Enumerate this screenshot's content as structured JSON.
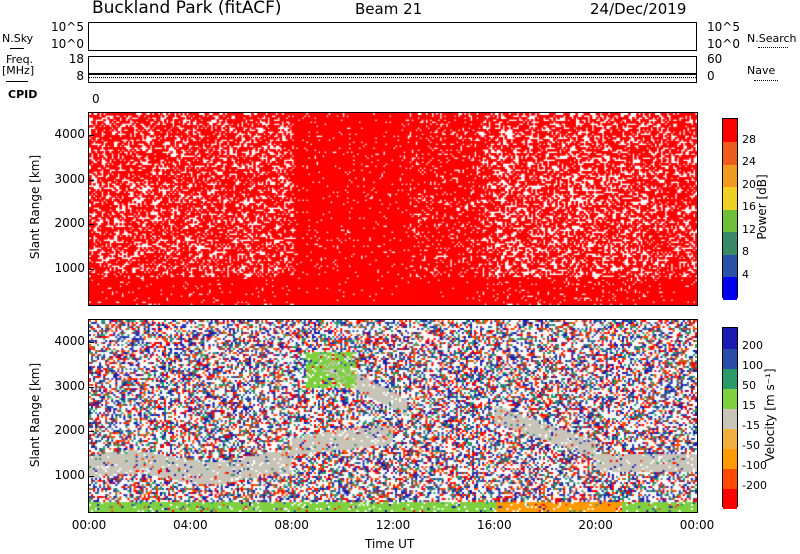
{
  "header": {
    "station": "Buckland Park (fitACF)",
    "beam": "Beam 21",
    "date": "24/Dec/2019"
  },
  "nsky_panel": {
    "left_label": "N.Sky",
    "right_label": "N.Search",
    "left_ticks": [
      "10^5",
      "10^0"
    ],
    "right_ticks": [
      "10^5",
      "10^0"
    ]
  },
  "freq_panel": {
    "left_label_line1": "Freq.",
    "left_label_line2": "[MHz]",
    "right_label": "Nave",
    "left_ticks": [
      "18",
      "8"
    ],
    "right_ticks": [
      "60",
      "0"
    ],
    "freq_level": 10,
    "nave_level": 3
  },
  "cpid": {
    "label": "CPID",
    "value": "0"
  },
  "chart_data": [
    {
      "type": "heatmap",
      "name": "power",
      "ylabel": "Slant Range [km]",
      "xlabel": "",
      "yticks": [
        1000,
        2000,
        3000,
        4000
      ],
      "ylim": [
        180,
        4500
      ],
      "xlim": [
        0,
        24
      ],
      "colorbar": {
        "label": "Power [dB]",
        "ticks": [
          "4",
          "8",
          "12",
          "16",
          "20",
          "24",
          "28"
        ],
        "colors": [
          "#0000ee",
          "#2a52a8",
          "#3a8a6a",
          "#6fbf3a",
          "#f0d020",
          "#f09a20",
          "#f05a1a",
          "#ff0000"
        ]
      }
    },
    {
      "type": "heatmap",
      "name": "velocity",
      "ylabel": "Slant Range [km]",
      "xlabel": "Time UT",
      "yticks": [
        1000,
        2000,
        3000,
        4000
      ],
      "ylim": [
        180,
        4500
      ],
      "xlim": [
        0,
        24
      ],
      "xticks": [
        "00:00",
        "04:00",
        "08:00",
        "12:00",
        "16:00",
        "20:00",
        "00:00"
      ],
      "colorbar": {
        "label": "Velocity [m s⁻¹]",
        "ticks": [
          "-200",
          "-100",
          "-50",
          "-15",
          "15",
          "50",
          "100",
          "200"
        ],
        "colors": [
          "#ff0000",
          "#ff4a00",
          "#ff9a00",
          "#f0b040",
          "#c8c4b8",
          "#7ed040",
          "#2a9a6a",
          "#2a4aa8",
          "#1a1ab0"
        ]
      }
    }
  ]
}
